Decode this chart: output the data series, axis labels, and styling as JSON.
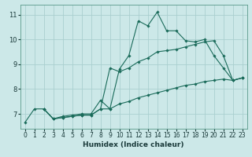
{
  "xlabel": "Humidex (Indice chaleur)",
  "bg_color": "#cce8e8",
  "grid_color": "#aacfcf",
  "line_color": "#1a6b5a",
  "xlim": [
    -0.5,
    23.5
  ],
  "ylim": [
    6.4,
    11.4
  ],
  "xticks": [
    0,
    1,
    2,
    3,
    4,
    5,
    6,
    7,
    8,
    9,
    10,
    11,
    12,
    13,
    14,
    15,
    16,
    17,
    18,
    19,
    20,
    21,
    22,
    23
  ],
  "yticks": [
    7,
    8,
    9,
    10,
    11
  ],
  "line1_x": [
    0,
    1,
    2,
    3,
    4,
    5,
    6,
    7,
    8,
    9,
    10,
    11,
    12,
    13,
    14,
    15,
    16,
    17,
    18,
    19,
    20,
    21,
    22,
    23
  ],
  "line1_y": [
    6.65,
    7.2,
    7.2,
    6.8,
    6.9,
    6.95,
    7.0,
    7.0,
    7.55,
    7.2,
    8.8,
    9.35,
    10.75,
    10.55,
    11.1,
    10.35,
    10.35,
    9.95,
    9.9,
    10.0,
    9.35,
    8.85,
    8.35,
    8.45
  ],
  "line2_x": [
    2,
    3,
    4,
    5,
    6,
    7,
    8,
    9,
    10,
    11,
    12,
    13,
    14,
    15,
    16,
    17,
    18,
    19,
    20,
    21,
    22,
    23
  ],
  "line2_y": [
    7.2,
    6.8,
    6.85,
    6.9,
    6.95,
    6.95,
    7.2,
    8.85,
    8.7,
    8.85,
    9.1,
    9.25,
    9.5,
    9.55,
    9.6,
    9.7,
    9.8,
    9.9,
    9.95,
    9.35,
    8.35,
    8.45
  ],
  "line3_x": [
    2,
    3,
    4,
    5,
    6,
    7,
    8,
    9,
    10,
    11,
    12,
    13,
    14,
    15,
    16,
    17,
    18,
    19,
    20,
    21,
    22,
    23
  ],
  "line3_y": [
    7.2,
    6.8,
    6.85,
    6.9,
    6.95,
    6.95,
    7.2,
    7.2,
    7.4,
    7.5,
    7.65,
    7.75,
    7.85,
    7.95,
    8.05,
    8.15,
    8.2,
    8.3,
    8.35,
    8.4,
    8.35,
    8.45
  ],
  "tick_fontsize": 5.5,
  "xlabel_fontsize": 6.5,
  "lw": 0.8,
  "ms": 1.8
}
